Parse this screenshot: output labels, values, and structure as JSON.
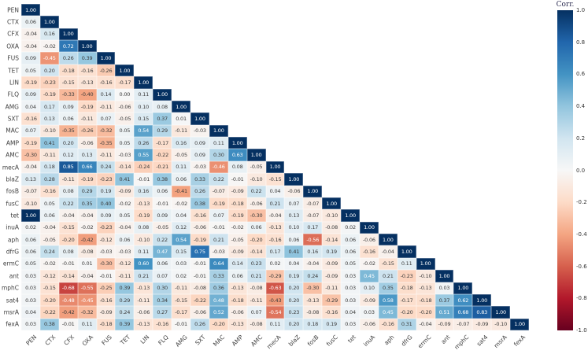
{
  "colors": {
    "background": "#ffffff",
    "cell_text_dark": "#3b3b3b",
    "cell_text_light": "#ffffff",
    "axis_label": "#404040",
    "legend_title": "#2d2d52",
    "tick_label": "#333333"
  },
  "chart_data": {
    "type": "heatmap",
    "subtype": "lower_triangular_correlation_matrix",
    "title": "",
    "grid": false,
    "value_format": "0.00",
    "white_text_threshold": 0.45,
    "labels": [
      "PEN",
      "CTX",
      "CFX",
      "OXA",
      "FUS",
      "TET",
      "LIN",
      "FLQ",
      "AMG",
      "SXT",
      "MAC",
      "AMP",
      "AMC",
      "mecA",
      "blaZ",
      "fosB",
      "fusC",
      "tet",
      "inuA",
      "aph",
      "dfrG",
      "ermC",
      "ant",
      "mphC",
      "sat4",
      "msrA",
      "fexA"
    ],
    "matrix": [
      [
        1.0
      ],
      [
        0.06,
        1.0
      ],
      [
        -0.04,
        0.16,
        1.0
      ],
      [
        -0.04,
        -0.02,
        0.72,
        1.0
      ],
      [
        0.09,
        -0.45,
        0.26,
        0.39,
        1.0
      ],
      [
        0.05,
        0.2,
        -0.18,
        -0.16,
        -0.26,
        1.0
      ],
      [
        -0.19,
        -0.23,
        -0.15,
        -0.13,
        -0.16,
        -0.17,
        1.0
      ],
      [
        0.09,
        -0.19,
        -0.33,
        -0.4,
        0.14,
        0.0,
        0.11,
        1.0
      ],
      [
        0.04,
        0.17,
        0.09,
        -0.19,
        -0.11,
        -0.06,
        0.1,
        0.08,
        1.0
      ],
      [
        -0.16,
        0.13,
        0.06,
        -0.11,
        0.07,
        -0.05,
        0.15,
        0.37,
        0.01,
        1.0
      ],
      [
        0.07,
        -0.1,
        -0.35,
        -0.26,
        -0.32,
        0.05,
        0.54,
        0.29,
        -0.11,
        -0.03,
        1.0
      ],
      [
        -0.19,
        0.41,
        0.2,
        -0.06,
        -0.35,
        0.05,
        0.26,
        -0.17,
        0.16,
        0.09,
        0.11,
        1.0
      ],
      [
        -0.3,
        -0.11,
        0.12,
        0.13,
        -0.11,
        -0.03,
        0.55,
        -0.22,
        -0.05,
        0.09,
        0.3,
        0.63,
        1.0
      ],
      [
        -0.04,
        0.18,
        0.85,
        0.66,
        0.24,
        -0.14,
        -0.24,
        -0.21,
        0.11,
        -0.03,
        -0.46,
        0.08,
        -0.05,
        1.0
      ],
      [
        0.13,
        0.28,
        -0.11,
        -0.19,
        -0.23,
        0.41,
        -0.01,
        0.38,
        0.06,
        0.33,
        0.22,
        -0.01,
        -0.1,
        -0.15,
        1.0
      ],
      [
        -0.07,
        -0.16,
        0.08,
        0.29,
        0.19,
        -0.09,
        0.16,
        0.06,
        -0.41,
        0.26,
        -0.07,
        -0.09,
        0.22,
        0.04,
        -0.06,
        1.0
      ],
      [
        -0.1,
        0.05,
        0.22,
        0.35,
        0.4,
        -0.02,
        -0.13,
        -0.01,
        -0.02,
        0.38,
        -0.19,
        -0.18,
        -0.06,
        0.21,
        0.07,
        -0.07,
        1.0
      ],
      [
        1.0,
        0.06,
        -0.04,
        -0.04,
        0.09,
        0.05,
        -0.19,
        0.09,
        0.04,
        -0.16,
        0.07,
        -0.19,
        -0.3,
        -0.04,
        0.13,
        -0.07,
        -0.1,
        1.0
      ],
      [
        0.02,
        -0.04,
        -0.15,
        -0.02,
        -0.23,
        -0.04,
        0.08,
        -0.05,
        0.12,
        -0.06,
        -0.01,
        -0.02,
        0.06,
        -0.13,
        0.1,
        0.17,
        -0.08,
        0.02,
        1.0
      ],
      [
        0.06,
        -0.05,
        -0.2,
        -0.42,
        -0.12,
        0.06,
        -0.1,
        0.22,
        0.54,
        -0.19,
        0.21,
        -0.05,
        -0.2,
        -0.16,
        0.06,
        -0.56,
        -0.14,
        0.06,
        -0.06,
        1.0
      ],
      [
        0.06,
        0.24,
        0.08,
        -0.08,
        -0.03,
        -0.03,
        0.11,
        0.47,
        0.15,
        0.75,
        -0.03,
        -0.09,
        -0.14,
        0.17,
        0.41,
        0.16,
        0.19,
        0.06,
        -0.16,
        -0.04,
        1.0
      ],
      [
        0.05,
        -0.02,
        -0.01,
        0.01,
        -0.3,
        -0.12,
        0.6,
        0.06,
        0.03,
        -0.01,
        0.64,
        0.14,
        0.23,
        0.02,
        0.04,
        -0.04,
        -0.09,
        0.05,
        -0.02,
        -0.15,
        0.11,
        1.0
      ],
      [
        0.03,
        -0.12,
        -0.14,
        -0.04,
        -0.01,
        -0.11,
        0.21,
        0.07,
        0.02,
        -0.01,
        0.33,
        0.06,
        0.21,
        -0.29,
        0.19,
        0.24,
        -0.09,
        0.03,
        0.45,
        0.21,
        -0.23,
        -0.1,
        1.0
      ],
      [
        0.03,
        -0.15,
        -0.68,
        -0.55,
        -0.25,
        0.39,
        -0.13,
        0.3,
        -0.11,
        -0.08,
        0.36,
        -0.13,
        -0.08,
        -0.63,
        0.2,
        -0.3,
        -0.11,
        0.03,
        0.1,
        0.35,
        -0.18,
        -0.13,
        0.03,
        1.0
      ],
      [
        0.03,
        -0.2,
        -0.48,
        -0.45,
        -0.16,
        0.29,
        -0.11,
        0.34,
        -0.15,
        -0.22,
        0.48,
        -0.18,
        -0.11,
        -0.43,
        0.2,
        -0.13,
        -0.29,
        0.03,
        -0.09,
        0.58,
        -0.17,
        -0.18,
        0.37,
        0.62,
        1.0
      ],
      [
        0.04,
        -0.22,
        -0.42,
        -0.32,
        -0.09,
        0.24,
        -0.06,
        0.27,
        -0.17,
        -0.06,
        0.52,
        -0.06,
        0.07,
        -0.54,
        0.23,
        -0.08,
        -0.16,
        0.04,
        0.03,
        0.45,
        -0.2,
        -0.2,
        0.51,
        0.68,
        0.83,
        1.0
      ],
      [
        0.03,
        0.38,
        -0.01,
        0.11,
        -0.18,
        0.39,
        -0.13,
        -0.16,
        -0.01,
        0.26,
        -0.2,
        -0.13,
        -0.08,
        0.11,
        0.2,
        0.18,
        0.19,
        0.03,
        -0.06,
        -0.16,
        0.31,
        -0.04,
        -0.09,
        -0.07,
        -0.09,
        -0.1,
        1.0
      ]
    ],
    "colormap": {
      "name": "RdBu",
      "domain": [
        -1,
        1
      ],
      "stops": [
        "#67001f",
        "#b2182b",
        "#d6604d",
        "#f4a582",
        "#fddbc7",
        "#f7f7f7",
        "#d1e5f0",
        "#92c5de",
        "#4393c3",
        "#2166ac",
        "#053061"
      ]
    },
    "legend": {
      "title": "Corr.",
      "position": "right",
      "range": [
        -1,
        1
      ],
      "ticks": [
        "1.0",
        "0.8",
        "0.6",
        "0.4",
        "0.2",
        "0.0",
        "-0.2",
        "-0.4",
        "-0.6",
        "-0.8",
        "-1.0"
      ]
    }
  }
}
